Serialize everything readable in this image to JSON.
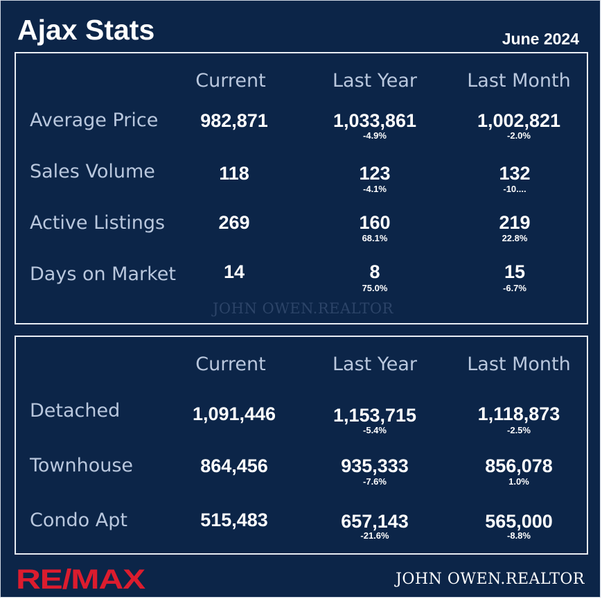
{
  "title": "Ajax Stats",
  "date": "June 2024",
  "columns": [
    "Current",
    "Last Year",
    "Last Month"
  ],
  "section1": {
    "rows": [
      {
        "label": "Average Price",
        "current": "982,871",
        "last_year": "1,033,861",
        "last_year_change": "-4.9%",
        "last_month": "1,002,821",
        "last_month_change": "-2.0%"
      },
      {
        "label": "Sales Volume",
        "current": "118",
        "last_year": "123",
        "last_year_change": "-4.1%",
        "last_month": "132",
        "last_month_change": "-10...."
      },
      {
        "label": "Active Listings",
        "current": "269",
        "last_year": "160",
        "last_year_change": "68.1%",
        "last_month": "219",
        "last_month_change": "22.8%"
      },
      {
        "label": "Days on Market",
        "current": "14",
        "last_year": "8",
        "last_year_change": "75.0%",
        "last_month": "15",
        "last_month_change": "-6.7%"
      }
    ]
  },
  "section2": {
    "rows": [
      {
        "label": "Detached",
        "current": "1,091,446",
        "last_year": "1,153,715",
        "last_year_change": "-5.4%",
        "last_month": "1,118,873",
        "last_month_change": "-2.5%"
      },
      {
        "label": "Townhouse",
        "current": "864,456",
        "last_year": "935,333",
        "last_year_change": "-7.6%",
        "last_month": "856,078",
        "last_month_change": "1.0%"
      },
      {
        "label": "Condo Apt",
        "current": "515,483",
        "last_year": "657,143",
        "last_year_change": "-21.6%",
        "last_month": "565,000",
        "last_month_change": "-8.8%"
      }
    ]
  },
  "watermark": "JOHN OWEN.REALTOR",
  "logo_text": "RE/MAX",
  "brand": "JOHN OWEN.REALTOR",
  "colors": {
    "background": "#0c2548",
    "logo_red": "#dc1c2e",
    "label": "#b9c7dd"
  }
}
